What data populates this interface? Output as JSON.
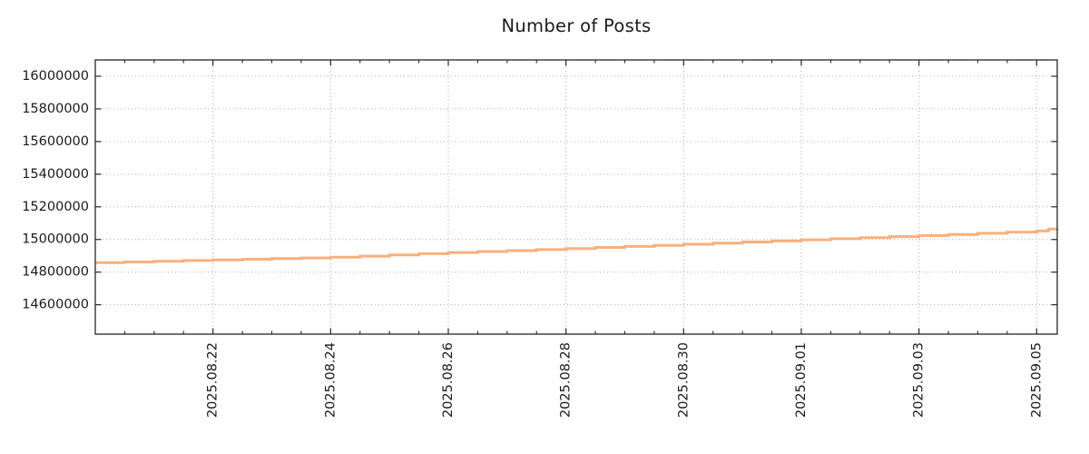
{
  "chart_data": {
    "type": "line",
    "title": "Number of Posts",
    "grid": "dotted",
    "legend": "none",
    "colors": {
      "line": "#f8b07d",
      "grid": "#b0b0b0",
      "axis": "#262626",
      "text": "#1a1a1a",
      "background": "#ffffff"
    },
    "line_width": 3,
    "step_interpolation": true,
    "xlim_days": [
      0,
      16.35
    ],
    "ylim": [
      14420000,
      16100000
    ],
    "x_minor_tick_interval_days": 0.5,
    "x_ticks": [
      {
        "d": 2,
        "label": "2025.08.22"
      },
      {
        "d": 4,
        "label": "2025.08.24"
      },
      {
        "d": 6,
        "label": "2025.08.26"
      },
      {
        "d": 8,
        "label": "2025.08.28"
      },
      {
        "d": 10,
        "label": "2025.08.30"
      },
      {
        "d": 12,
        "label": "2025.09.01"
      },
      {
        "d": 14,
        "label": "2025.09.03"
      },
      {
        "d": 16,
        "label": "2025.09.05"
      }
    ],
    "y_ticks": [
      {
        "v": 16000000,
        "label": "16000000"
      },
      {
        "v": 15800000,
        "label": "15800000"
      },
      {
        "v": 15600000,
        "label": "15600000"
      },
      {
        "v": 15400000,
        "label": "15400000"
      },
      {
        "v": 15200000,
        "label": "15200000"
      },
      {
        "v": 15000000,
        "label": "15000000"
      },
      {
        "v": 14800000,
        "label": "14800000"
      },
      {
        "v": 14600000,
        "label": "14600000"
      }
    ],
    "series": [
      {
        "name": "posts",
        "x_days": [
          0,
          0.5,
          1,
          1.5,
          2,
          2.5,
          3,
          3.5,
          4,
          4.5,
          5,
          5.5,
          6,
          6.5,
          7,
          7.5,
          8,
          8.5,
          9,
          9.5,
          10,
          10.5,
          11,
          11.5,
          12,
          12.5,
          13,
          13.5,
          14,
          14.5,
          15,
          15.5,
          16,
          16.2,
          16.35
        ],
        "values": [
          14858000,
          14862000,
          14866500,
          14871000,
          14875000,
          14879000,
          14883000,
          14887000,
          14891000,
          14898000,
          14905500,
          14913000,
          14920000,
          14926000,
          14932000,
          14938000,
          14944000,
          14951000,
          14957500,
          14964000,
          14971000,
          14978000,
          14984500,
          14991000,
          14998000,
          15004500,
          15011000,
          15017500,
          15024000,
          15031000,
          15038000,
          15045000,
          15052000,
          15064000,
          15065000
        ]
      }
    ]
  }
}
